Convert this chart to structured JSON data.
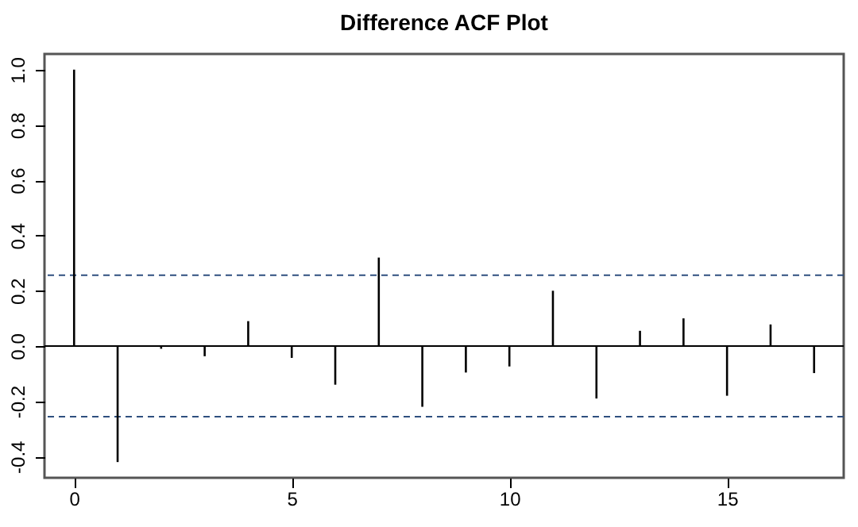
{
  "chart_data": {
    "type": "bar",
    "title": "Difference ACF Plot",
    "x": [
      0,
      1,
      2,
      3,
      4,
      5,
      6,
      7,
      8,
      9,
      10,
      11,
      12,
      13,
      14,
      15,
      16,
      17
    ],
    "values": [
      1.0,
      -0.42,
      -0.01,
      -0.037,
      0.09,
      -0.043,
      -0.14,
      0.32,
      -0.22,
      -0.096,
      -0.074,
      0.2,
      -0.19,
      0.055,
      0.1,
      -0.18,
      0.078,
      -0.098
    ],
    "color": "#000000",
    "xlim": [
      -0.68,
      17.68
    ],
    "ylim": [
      -0.477,
      1.057
    ],
    "xticks": [
      0,
      5,
      10,
      15
    ],
    "yticks": [
      {
        "value": -0.4,
        "label": "-0.4"
      },
      {
        "value": -0.2,
        "label": "-0.2"
      },
      {
        "value": 0,
        "label": "0.0"
      },
      {
        "value": 0.2,
        "label": "0.2"
      },
      {
        "value": 0.4,
        "label": "0.4"
      },
      {
        "value": 0.6,
        "label": "0.6"
      },
      {
        "value": 0.8,
        "label": "0.8"
      },
      {
        "value": 1.0,
        "label": "1.0"
      }
    ],
    "ref_lines": [
      {
        "axis": "y",
        "value": 0,
        "label": null,
        "color": "#000000"
      },
      {
        "axis": "y",
        "value": 0.256,
        "label": null,
        "color": "#2f4f7f",
        "line_style": "dashed"
      },
      {
        "axis": "y",
        "value": -0.256,
        "label": null,
        "color": "#2f4f7f",
        "line_style": "dashed"
      }
    ],
    "grid": false
  }
}
